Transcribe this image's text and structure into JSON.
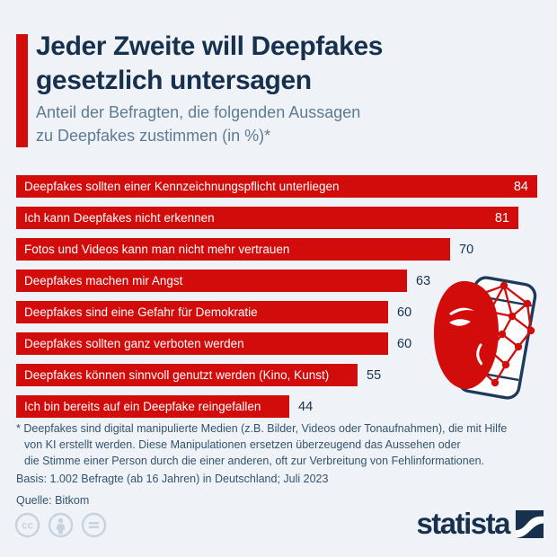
{
  "theme": {
    "background": "#eff3f8",
    "bar_red": "#d20b0b",
    "navy": "#16304e",
    "subtitle_color": "#5e7b94",
    "footnote_color": "#33536f",
    "license_icon_color": "#c7d2de"
  },
  "header": {
    "title_lines": [
      "Jeder Zweite will Deepfakes",
      "gesetzlich untersagen"
    ],
    "subtitle_lines": [
      "Anteil der Befragten, die folgenden Aussagen",
      "zu Deepfakes zustimmen (in %)*"
    ]
  },
  "chart_data": {
    "type": "bar",
    "orientation": "horizontal",
    "title": "Jeder Zweite will Deepfakes gesetzlich untersagen",
    "subtitle": "Anteil der Befragten, die folgenden Aussagen zu Deepfakes zustimmen (in %)*",
    "unit": "%",
    "categories": [
      "Deepfakes sollten einer Kennzeichnungspflicht unterliegen",
      "Ich kann Deepfakes nicht erkennen",
      "Fotos und Videos kann man nicht mehr vertrauen",
      "Deepfakes machen mir Angst",
      "Deepfakes sind eine Gefahr für Demokratie",
      "Deepfakes sollten ganz verboten werden",
      "Deepfakes können sinnvoll genutzt werden (Kino, Kunst)",
      "Ich bin bereits auf ein Deepfake reingefallen"
    ],
    "values": [
      84,
      81,
      70,
      63,
      60,
      60,
      55,
      44
    ],
    "xlim": [
      0,
      84
    ],
    "grid": false,
    "legend": false,
    "bar_color": "#d20b0b",
    "value_label_inside_color": "#ffffff",
    "value_label_outside_color": "#16304e"
  },
  "footnote": {
    "note_lines": [
      "* Deepfakes sind digital manipulierte Medien (z.B. Bilder, Videos oder Tonaufnahmen), die mit Hilfe",
      "von KI erstellt werden. Diese Manipulationen ersetzen überzeugend das Aussehen oder",
      "die Stimme einer Person durch die einer anderen, oft zur Verbreitung von Fehlinformationen."
    ],
    "basis": "Basis: 1.002 Befragte (ab 16 Jahren) in Deutschland; Juli 2023",
    "source": "Quelle: Bitkom"
  },
  "branding": {
    "logo_text": "statista",
    "license_icons": [
      "cc-icon",
      "cc-by-person-icon",
      "cc-nd-equals-icon"
    ]
  },
  "illustration": {
    "name": "deepfake-phone-illustration",
    "parts": [
      "smartphone-icon",
      "red-mask-icon",
      "face-recognition-mesh-icon"
    ]
  }
}
